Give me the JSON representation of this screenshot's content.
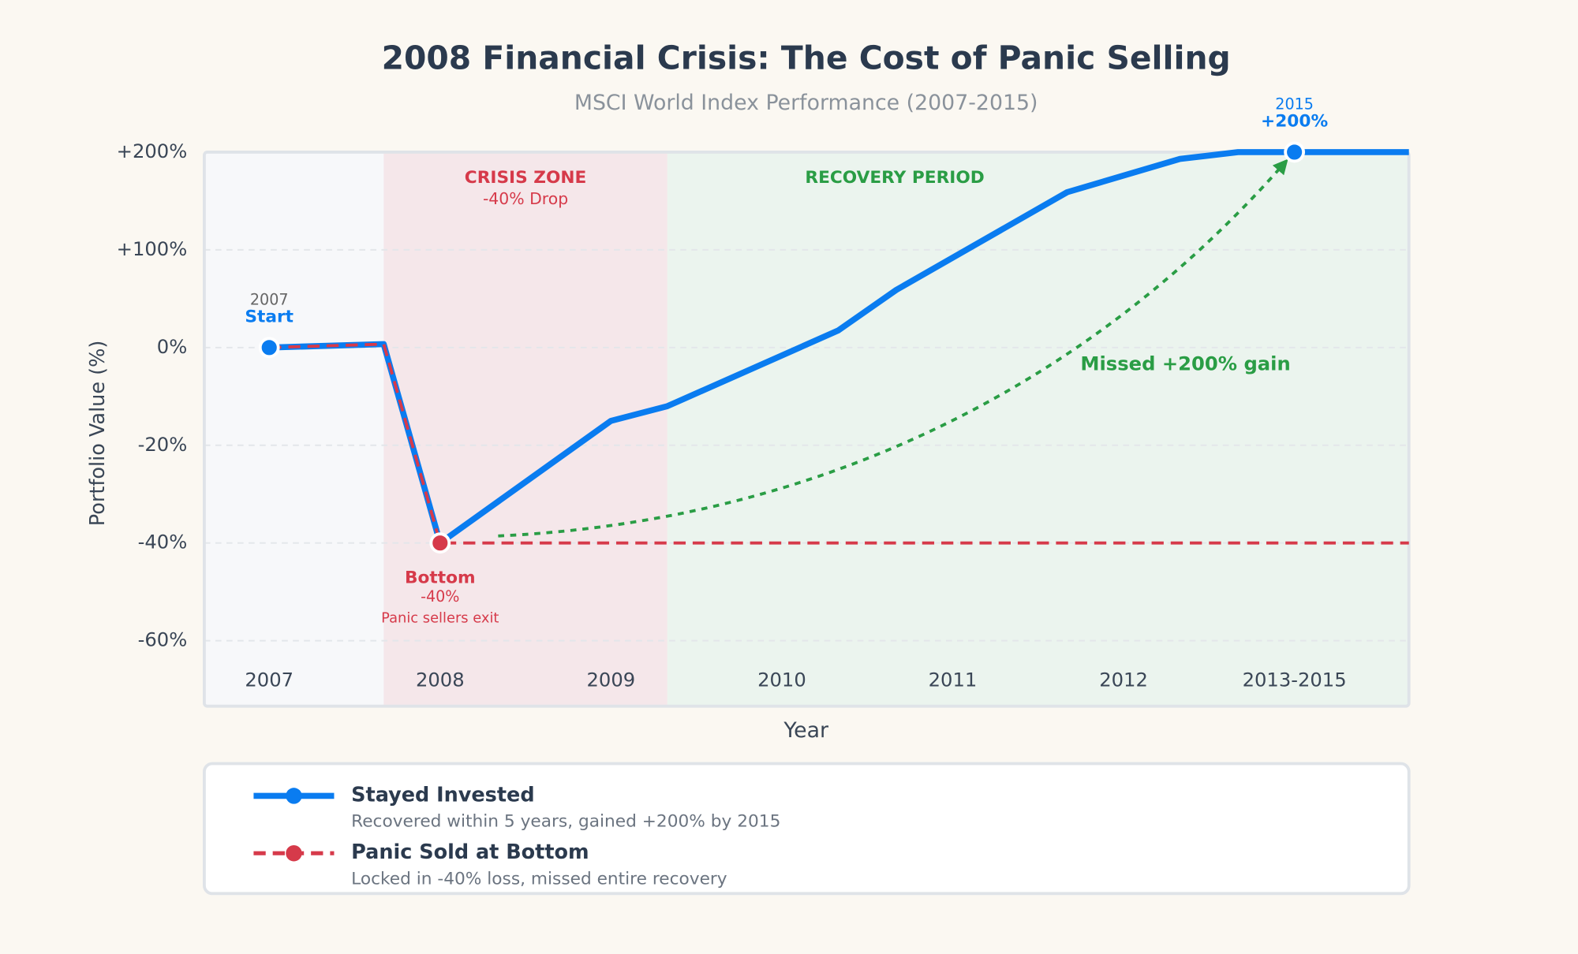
{
  "chart_data": {
    "type": "line",
    "title": "2008 Financial Crisis: The Cost of Panic Selling",
    "subtitle": "MSCI World Index Performance (2007-2015)",
    "x_label": "Year",
    "y_label": "Portfolio Value (%)",
    "x": [
      2007,
      2007.67,
      2008,
      2009,
      2009.33,
      2010.33,
      2010.67,
      2011.67,
      2012.33,
      2012.67,
      2013,
      2013.67
    ],
    "xlim": [
      2006.62,
      2013.67
    ],
    "xticks": [
      2007,
      2008,
      2009,
      2010,
      2011,
      2012,
      {
        "value": 2013,
        "label": "2013-2015"
      }
    ],
    "ylim": [
      -73.4,
      200
    ],
    "yticks": [
      {
        "value": -60,
        "label": "-60%"
      },
      {
        "value": -40,
        "label": "-40%"
      },
      {
        "value": -20,
        "label": "-20%"
      },
      {
        "value": 0,
        "label": "0%"
      },
      {
        "value": 100,
        "label": "+100%"
      },
      {
        "value": 200,
        "label": "+200%"
      }
    ],
    "grid": true,
    "series": [
      {
        "name": "Stayed Invested",
        "description": "Recovered within 5 years, gained +200% by 2015",
        "color": "#0a7cf0",
        "style": "solid",
        "values": [
          0,
          3.5,
          -40,
          -15,
          -12,
          17.5,
          59,
          159,
          193,
          200,
          200,
          200
        ]
      },
      {
        "name": "Panic Sold at Bottom",
        "description": "Locked in -40% loss, missed entire recovery",
        "color": "#d63a4a",
        "style": "dashed",
        "values": [
          0,
          3.5,
          -40,
          -40,
          -40,
          -40,
          -40,
          -40,
          -40,
          -40,
          -40,
          -40
        ]
      }
    ],
    "zones": [
      {
        "label": "CRISIS ZONE",
        "sublabel": "-40% Drop",
        "x": [
          2007.67,
          2009.33
        ],
        "color": "#f5e7ea",
        "text_color": "#d63a4a"
      },
      {
        "label": "RECOVERY PERIOD",
        "x": [
          2009.33,
          2013.67
        ],
        "color": "#ebf4ee",
        "text_color": "#2a9d45"
      }
    ],
    "annotations": {
      "start": {
        "year": "2007",
        "label": "Start"
      },
      "bottom": {
        "label": "Bottom",
        "value": "-40%",
        "note": "Panic sellers exit"
      },
      "end": {
        "year": "2015",
        "label": "+200%"
      },
      "missed": "Missed +200% gain"
    }
  }
}
